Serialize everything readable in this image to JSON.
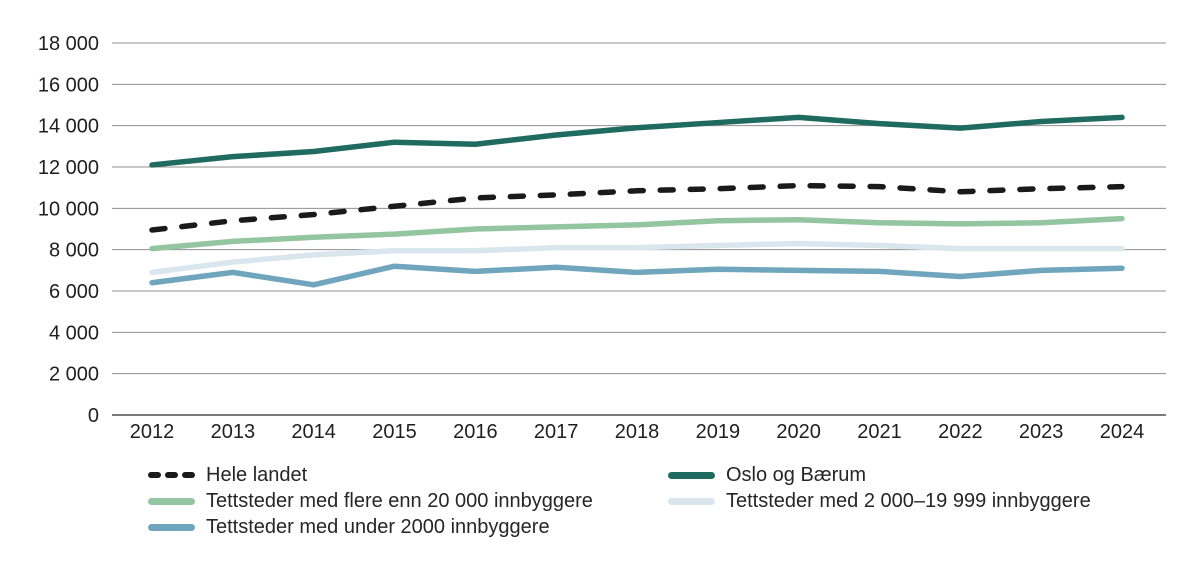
{
  "chart_data": {
    "type": "line",
    "title": "",
    "xlabel": "",
    "ylabel": "",
    "x": [
      2012,
      2013,
      2014,
      2015,
      2016,
      2017,
      2018,
      2019,
      2020,
      2021,
      2022,
      2023,
      2024
    ],
    "xtick_labels": [
      "2012",
      "2013",
      "2014",
      "2015",
      "2016",
      "2017",
      "2018",
      "2019",
      "2020",
      "2021",
      "2022",
      "2023",
      "2024"
    ],
    "ylim": [
      0,
      18000
    ],
    "ytick_step": 2000,
    "ytick_labels": [
      "0",
      "2 000",
      "4 000",
      "6 000",
      "8 000",
      "10 000",
      "12 000",
      "14 000",
      "16 000",
      "18 000"
    ],
    "grid": true,
    "legend_position": "bottom",
    "series": [
      {
        "name": "Hele landet",
        "color": "#1a1a1a",
        "line_style": "dashed",
        "values": [
          8950,
          9400,
          9700,
          10100,
          10500,
          10650,
          10850,
          10950,
          11100,
          11050,
          10800,
          10950,
          11050
        ]
      },
      {
        "name": "Oslo og Bærum",
        "color": "#206b60",
        "line_style": "solid",
        "values": [
          12100,
          12500,
          12750,
          13200,
          13100,
          13550,
          13900,
          14150,
          14400,
          14100,
          13880,
          14200,
          14400
        ]
      },
      {
        "name": "Tettsteder med flere enn 20 000 innbyggere",
        "color": "#93c6a0",
        "line_style": "solid",
        "values": [
          8050,
          8400,
          8600,
          8750,
          9000,
          9100,
          9200,
          9400,
          9450,
          9300,
          9250,
          9300,
          9500
        ]
      },
      {
        "name": "Tettsteder med 2 000–19 999 innbyggere",
        "color": "#d9e6ee",
        "line_style": "solid",
        "values": [
          6900,
          7400,
          7750,
          7950,
          7950,
          8100,
          8100,
          8200,
          8300,
          8200,
          8050,
          8050,
          8050
        ]
      },
      {
        "name": "Tettsteder med under 2000 innbyggere",
        "color": "#6fa5bd",
        "line_style": "solid",
        "values": [
          6400,
          6900,
          6300,
          7200,
          6950,
          7150,
          6900,
          7050,
          7000,
          6950,
          6700,
          7000,
          7100
        ]
      }
    ],
    "legend_columns": [
      [
        0,
        2,
        4
      ],
      [
        1,
        3
      ]
    ],
    "colors": {
      "grid": "#8f8f8f",
      "axis": "#4f4f4f",
      "text": "#1f1f1f"
    }
  }
}
